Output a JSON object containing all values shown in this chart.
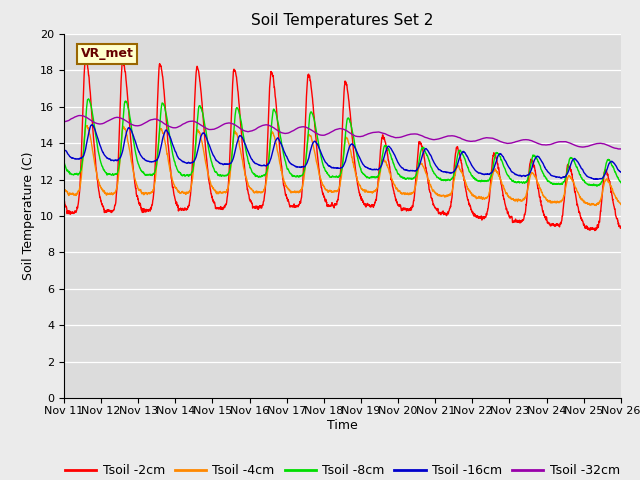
{
  "title": "Soil Temperatures Set 2",
  "xlabel": "Time",
  "ylabel": "Soil Temperature (C)",
  "ylim": [
    0,
    20
  ],
  "yticks": [
    0,
    2,
    4,
    6,
    8,
    10,
    12,
    14,
    16,
    18,
    20
  ],
  "x_ticks": [
    11,
    12,
    13,
    14,
    15,
    16,
    17,
    18,
    19,
    20,
    21,
    22,
    23,
    24,
    25,
    26
  ],
  "x_tick_labels": [
    "Nov 11",
    "Nov 12",
    "Nov 13",
    "Nov 14",
    "Nov 15",
    "Nov 16",
    "Nov 17",
    "Nov 18",
    "Nov 19",
    "Nov 20",
    "Nov 21",
    "Nov 22",
    "Nov 23",
    "Nov 24",
    "Nov 25",
    "Nov 26"
  ],
  "legend_labels": [
    "Tsoil -2cm",
    "Tsoil -4cm",
    "Tsoil -8cm",
    "Tsoil -16cm",
    "Tsoil -32cm"
  ],
  "line_colors": [
    "#ff0000",
    "#ff8800",
    "#00dd00",
    "#0000cc",
    "#9900aa"
  ],
  "bg_color": "#dcdcdc",
  "fig_bg_color": "#ebebeb",
  "annotation_text": "VR_met",
  "title_fontsize": 11,
  "axis_label_fontsize": 9,
  "tick_fontsize": 8,
  "legend_fontsize": 9
}
